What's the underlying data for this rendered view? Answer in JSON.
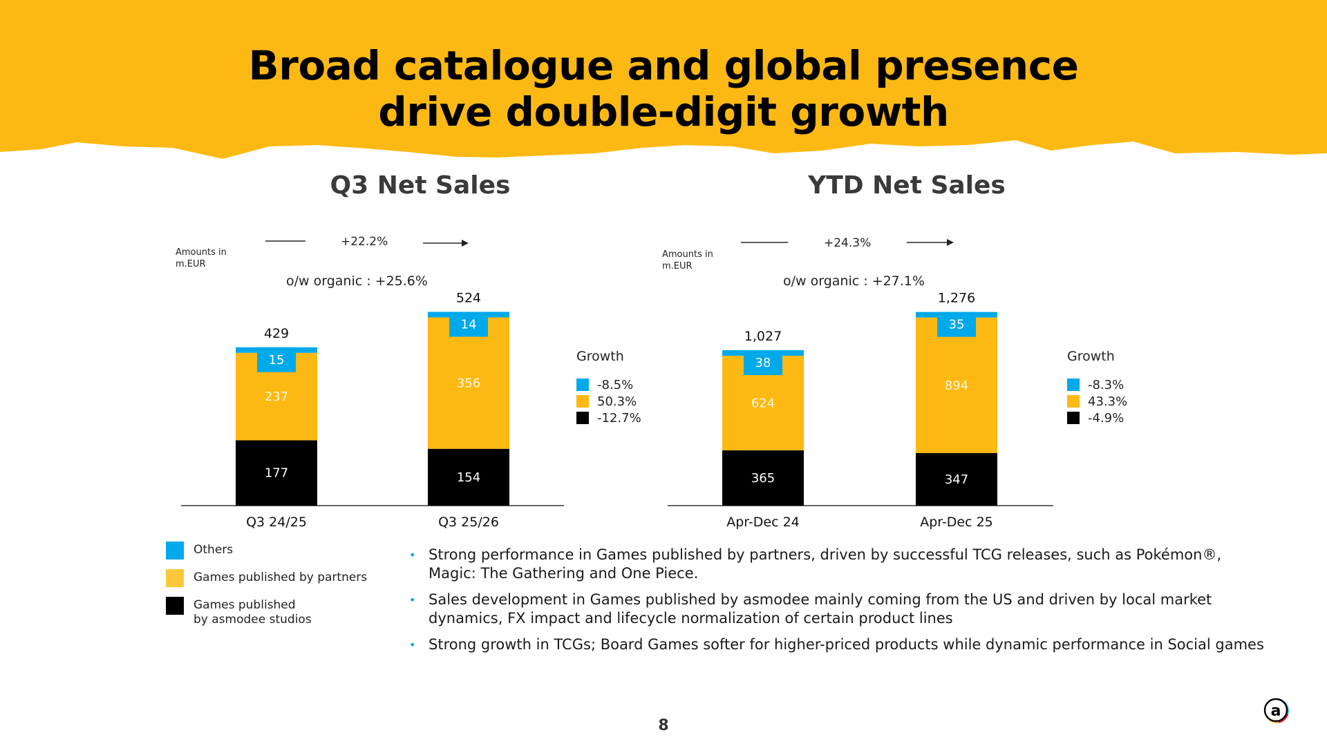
{
  "colors": {
    "header": "#FDB913",
    "others": "#00A9EA",
    "partners": "#FDB913",
    "studios": "#000000",
    "bullet": "#00A3E0"
  },
  "slide": {
    "title_line1": "Broad catalogue and global presence",
    "title_line2": "drive double-digit growth",
    "page_number": "8"
  },
  "chart_data": [
    {
      "type": "bar",
      "stacked": true,
      "title": "Q3 Net Sales",
      "amounts_note_line1": "Amounts in",
      "amounts_note_line2": "m.EUR",
      "growth_annotation": "+22.2%",
      "organic_annotation": "o/w organic : +25.6%",
      "categories": [
        "Q3 24/25",
        "Q3 25/26"
      ],
      "totals": [
        "429",
        "524"
      ],
      "ylim": [
        0,
        524
      ],
      "series": [
        {
          "name": "Games published by asmodee studios",
          "values": [
            177,
            154
          ],
          "color": "#000000"
        },
        {
          "name": "Games published by partners",
          "values": [
            237,
            356
          ],
          "color": "#FDB913"
        },
        {
          "name": "Others",
          "values": [
            15,
            14
          ],
          "color": "#00A9EA"
        }
      ],
      "growth_legend": {
        "title": "Growth",
        "items": [
          {
            "value": "-8.5%",
            "color": "#00A9EA"
          },
          {
            "value": "50.3%",
            "color": "#FDB913"
          },
          {
            "value": "-12.7%",
            "color": "#000000"
          }
        ]
      }
    },
    {
      "type": "bar",
      "stacked": true,
      "title": "YTD Net Sales",
      "amounts_note_line1": "Amounts in",
      "amounts_note_line2": "m.EUR",
      "growth_annotation": "+24.3%",
      "organic_annotation": "o/w organic : +27.1%",
      "categories": [
        "Apr-Dec 24",
        "Apr-Dec 25"
      ],
      "totals": [
        "1,027",
        "1,276"
      ],
      "ylim": [
        0,
        1276
      ],
      "series": [
        {
          "name": "Games published by asmodee studios",
          "values": [
            365,
            347
          ],
          "color": "#000000"
        },
        {
          "name": "Games published by partners",
          "values": [
            624,
            894
          ],
          "color": "#FDB913"
        },
        {
          "name": "Others",
          "values": [
            38,
            35
          ],
          "color": "#00A9EA"
        }
      ],
      "growth_legend": {
        "title": "Growth",
        "items": [
          {
            "value": "-8.3%",
            "color": "#00A9EA"
          },
          {
            "value": "43.3%",
            "color": "#FDB913"
          },
          {
            "value": "-4.9%",
            "color": "#000000"
          }
        ]
      }
    }
  ],
  "series_legend": [
    {
      "line1": "Others",
      "line2": "",
      "color": "#00A9EA"
    },
    {
      "line1": "Games published by partners",
      "line2": "",
      "color": "#FDC73A"
    },
    {
      "line1": "Games published",
      "line2": "by asmodee studios",
      "color": "#000000"
    }
  ],
  "bullets": [
    "Strong performance in Games published by partners, driven by successful TCG releases, such as Pokémon®, Magic: The Gathering and One Piece.",
    "Sales development in Games published by asmodee mainly coming from the US and driven by local market dynamics, FX impact and lifecycle normalization of certain product lines",
    "Strong growth in TCGs; Board Games softer for higher-priced products while dynamic performance in Social games"
  ],
  "bullet_marker": "•"
}
